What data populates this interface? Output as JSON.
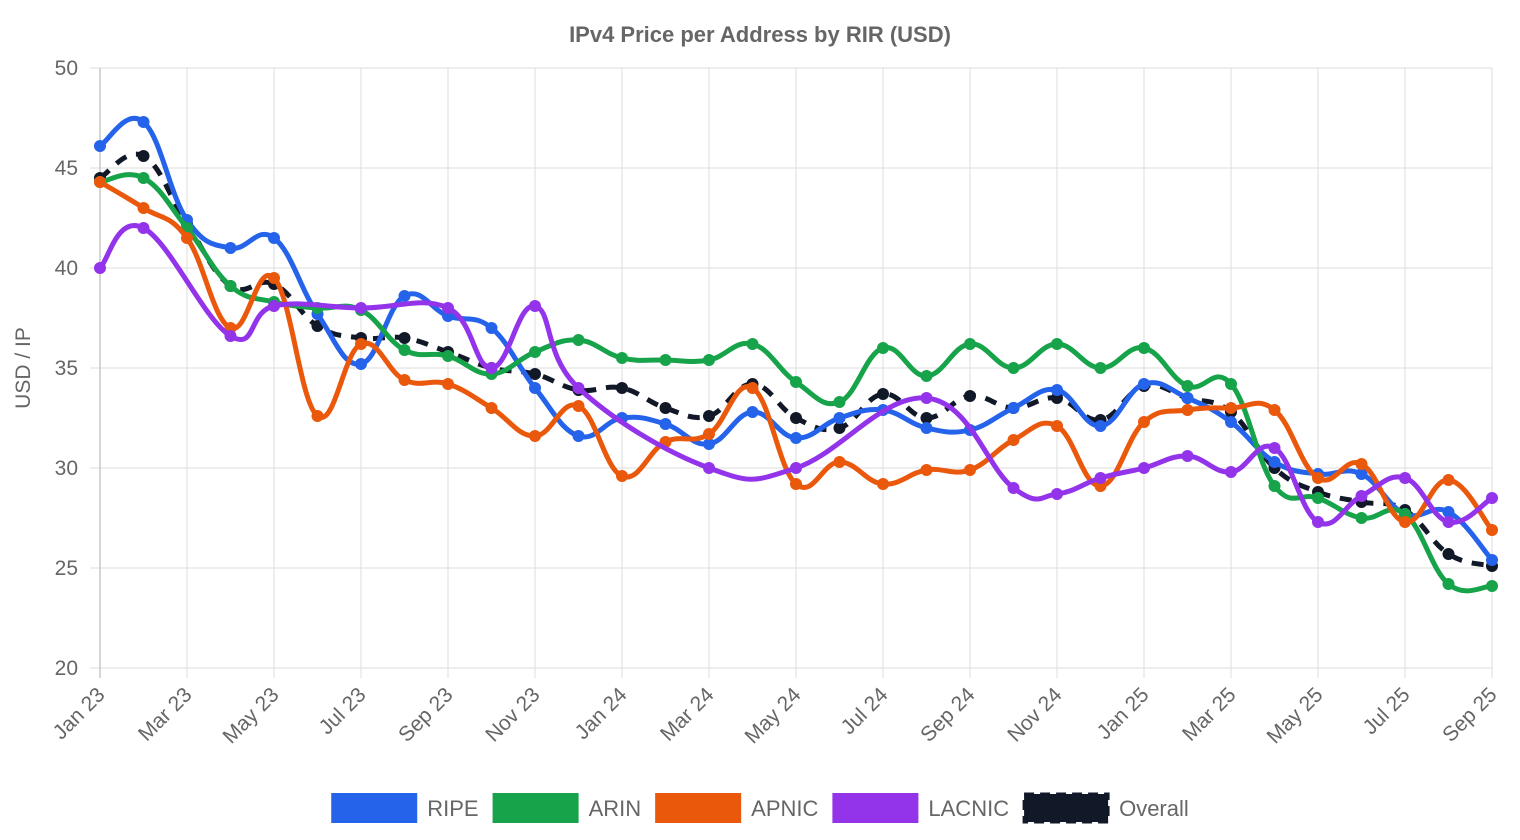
{
  "chart_data": {
    "type": "line",
    "title": "IPv4 Price per Address by RIR (USD)",
    "xlabel": "",
    "ylabel": "USD / IP",
    "ylim": [
      20,
      50
    ],
    "y_ticks": [
      "20",
      "25",
      "30",
      "35",
      "40",
      "45",
      "50"
    ],
    "grid": true,
    "legend_position": "bottom",
    "x": [
      "Jan 23",
      "Feb 23",
      "Mar 23",
      "Apr 23",
      "May 23",
      "Jun 23",
      "Jul 23",
      "Aug 23",
      "Sep 23",
      "Oct 23",
      "Nov 23",
      "Dec 23",
      "Jan 24",
      "Feb 24",
      "Mar 24",
      "Apr 24",
      "May 24",
      "Jun 24",
      "Jul 24",
      "Aug 24",
      "Sep 24",
      "Oct 24",
      "Nov 24",
      "Dec 24",
      "Jan 25",
      "Feb 25",
      "Mar 25",
      "Apr 25",
      "May 25",
      "Jun 25",
      "Jul 25",
      "Aug 25",
      "Sep 25"
    ],
    "x_tick_labels": [
      "Jan 23",
      "Mar 23",
      "May 23",
      "Jul 23",
      "Sep 23",
      "Nov 23",
      "Jan 24",
      "Mar 24",
      "May 24",
      "Jul 24",
      "Sep 24",
      "Nov 24",
      "Jan 25",
      "Mar 25",
      "May 25",
      "Jul 25",
      "Sep 25"
    ],
    "series": [
      {
        "name": "Overall",
        "color": "#111827",
        "dashed": true,
        "values": [
          44.5,
          45.6,
          42.2,
          39.1,
          39.2,
          37.1,
          36.5,
          36.5,
          35.8,
          35.0,
          34.7,
          33.9,
          34.0,
          33.0,
          32.6,
          34.2,
          32.5,
          32.0,
          33.7,
          32.5,
          33.6,
          33.0,
          33.5,
          32.4,
          34.1,
          33.5,
          32.8,
          30.0,
          28.8,
          28.3,
          27.9,
          25.7,
          25.1
        ]
      },
      {
        "name": "RIPE",
        "color": "#2563eb",
        "dashed": false,
        "values": [
          46.1,
          47.3,
          42.4,
          41.0,
          41.5,
          37.7,
          35.2,
          38.6,
          37.6,
          37.0,
          34.0,
          31.6,
          32.5,
          32.2,
          31.2,
          32.8,
          31.5,
          32.5,
          32.9,
          32.0,
          31.9,
          33.0,
          33.9,
          32.1,
          34.2,
          33.5,
          32.3,
          30.3,
          29.7,
          29.7,
          27.7,
          27.8,
          25.4
        ]
      },
      {
        "name": "ARIN",
        "color": "#16a34a",
        "dashed": false,
        "values": [
          44.3,
          44.5,
          42.0,
          39.1,
          38.3,
          38.0,
          37.9,
          35.9,
          35.6,
          34.7,
          35.8,
          36.4,
          35.5,
          35.4,
          35.4,
          36.2,
          34.3,
          33.3,
          36.0,
          34.6,
          36.2,
          35.0,
          36.2,
          35.0,
          36.0,
          34.1,
          34.2,
          29.1,
          28.5,
          27.5,
          27.7,
          24.2,
          24.1
        ]
      },
      {
        "name": "APNIC",
        "color": "#ea580c",
        "dashed": false,
        "values": [
          44.3,
          43.0,
          41.5,
          37.0,
          39.5,
          32.6,
          36.2,
          34.4,
          34.2,
          33.0,
          31.6,
          33.1,
          29.6,
          31.3,
          31.7,
          34.0,
          29.2,
          30.3,
          29.2,
          29.9,
          29.9,
          31.4,
          32.1,
          29.1,
          32.3,
          32.9,
          33.0,
          32.9,
          29.5,
          30.2,
          27.3,
          29.4,
          26.9
        ]
      },
      {
        "name": "LACNIC",
        "color": "#9333ea",
        "dashed": false,
        "values": [
          40.0,
          42.0,
          null,
          36.6,
          38.1,
          null,
          38.0,
          null,
          38.0,
          35.0,
          38.1,
          34.0,
          null,
          null,
          30.0,
          null,
          30.0,
          null,
          null,
          33.5,
          null,
          29.0,
          28.7,
          29.5,
          30.0,
          30.6,
          29.8,
          31.0,
          27.3,
          28.6,
          29.5,
          27.3,
          28.5
        ]
      }
    ],
    "legend_order": [
      "RIPE",
      "ARIN",
      "APNIC",
      "LACNIC",
      "Overall"
    ]
  }
}
